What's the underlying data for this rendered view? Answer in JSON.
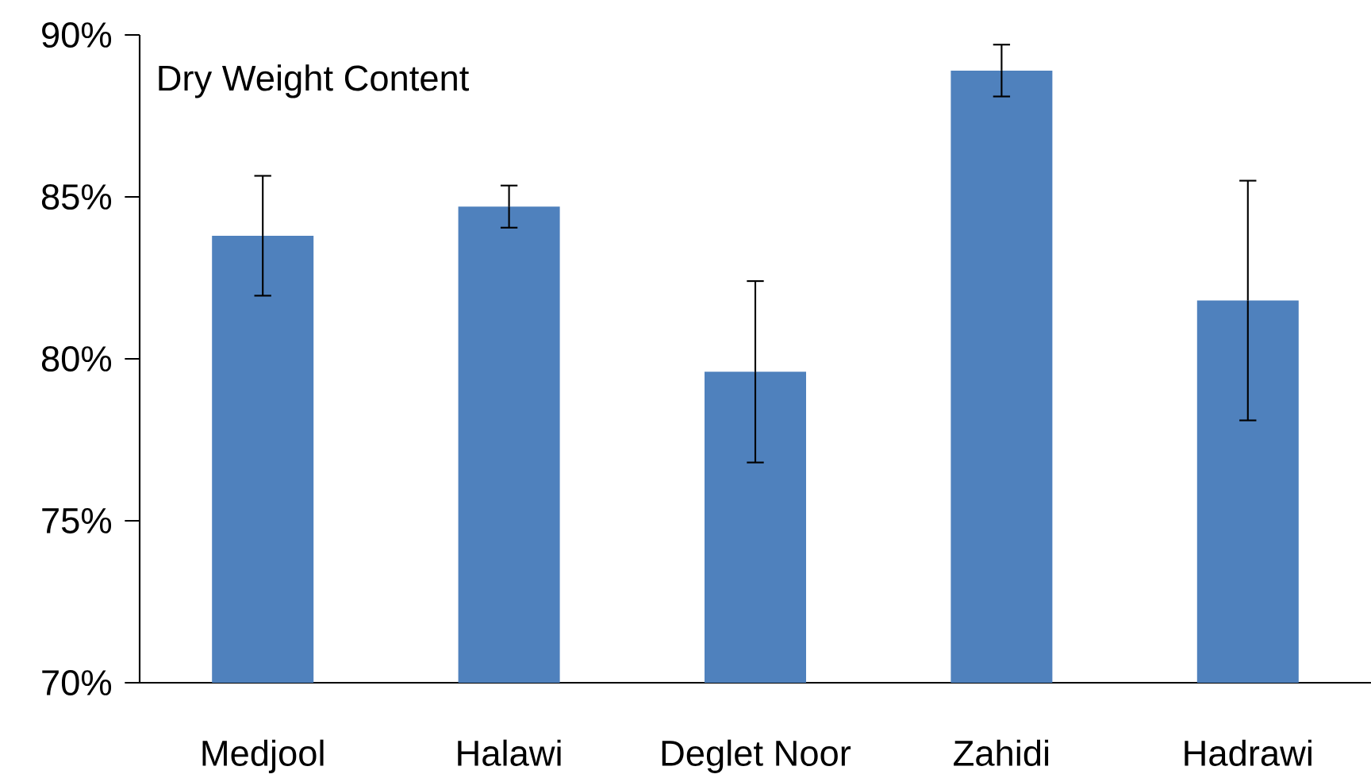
{
  "chart_data": {
    "type": "bar",
    "title": "Dry Weight Content",
    "categories": [
      "Medjool",
      "Halawi",
      "Deglet Noor",
      "Zahidi",
      "Hadrawi"
    ],
    "values": [
      83.8,
      84.7,
      79.6,
      88.9,
      81.8
    ],
    "errors": [
      1.85,
      0.65,
      2.8,
      0.8,
      3.7
    ],
    "color": "#4f81bd",
    "ylim": [
      70,
      90
    ],
    "yticks": [
      {
        "value": 70,
        "label": "70%"
      },
      {
        "value": 75,
        "label": "75%"
      },
      {
        "value": 80,
        "label": "80%"
      },
      {
        "value": 85,
        "label": "85%"
      },
      {
        "value": 90,
        "label": "90%"
      }
    ]
  }
}
